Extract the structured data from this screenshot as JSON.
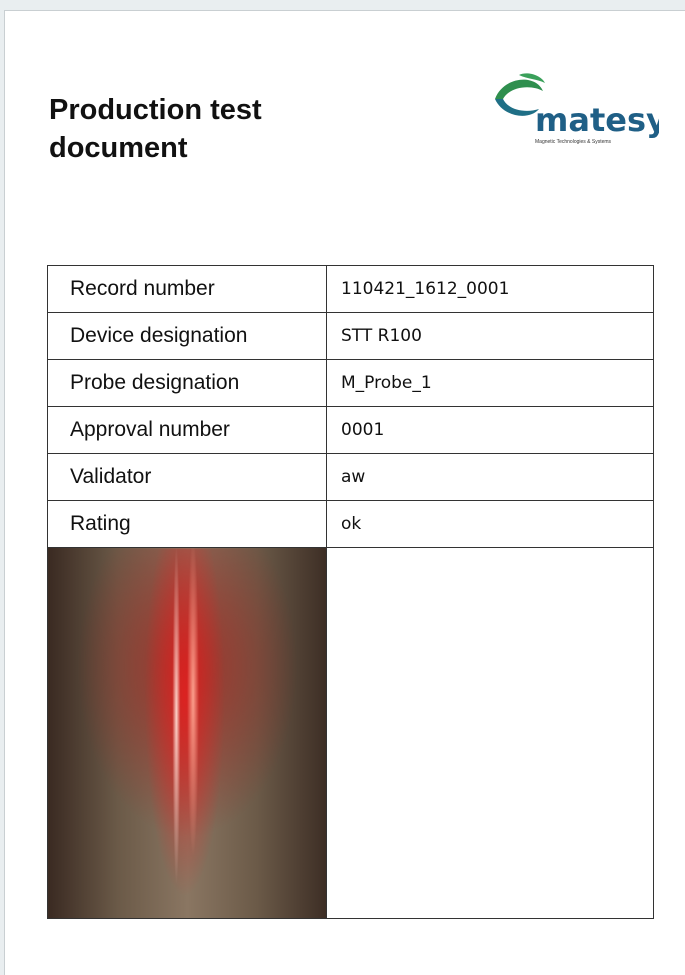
{
  "header": {
    "title": "Production test document",
    "logo": {
      "name": "matesy",
      "tagline": "Magnetic Technologies & Systems"
    }
  },
  "table": {
    "rows": [
      [
        "Record number",
        "110421_1612_0001"
      ],
      [
        "Device designation",
        "STT R100"
      ],
      [
        "Probe designation",
        "M_Probe_1"
      ],
      [
        "Approval number",
        "0001"
      ],
      [
        "Validator",
        "aw"
      ],
      [
        "Rating",
        "ok"
      ]
    ]
  }
}
